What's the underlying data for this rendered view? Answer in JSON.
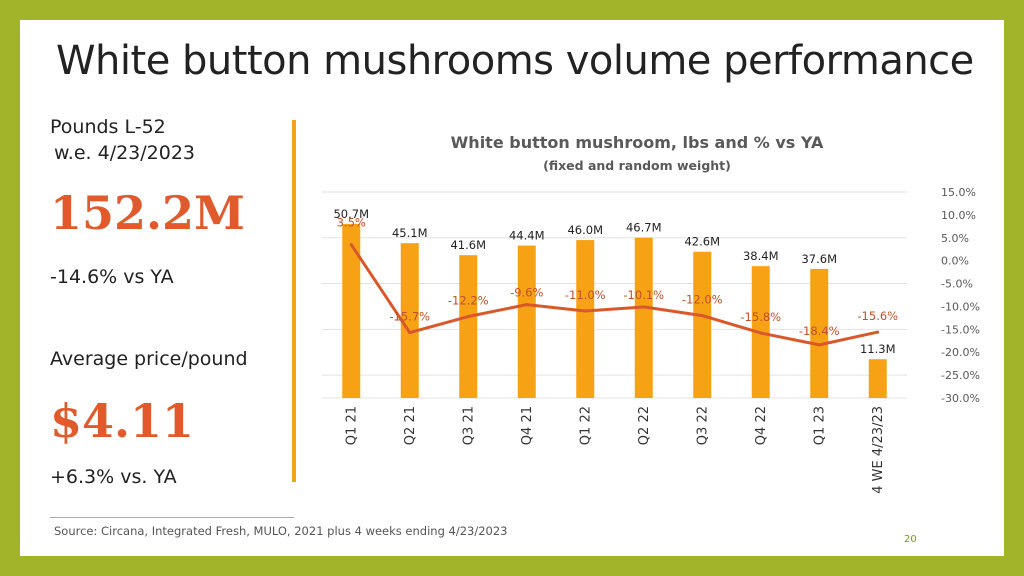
{
  "slide": {
    "title": "White button mushrooms volume performance",
    "left_panel": {
      "line1": "Pounds L-52",
      "line2": "w.e. 4/23/2023",
      "volume": "152.2M",
      "volume_change": "-14.6% vs YA",
      "price_label": "Average price/pound",
      "price": "$4.11",
      "price_change": "+6.3% vs. YA"
    },
    "source": "Source: Circana, Integrated Fresh, MULO, 2021 plus 4 weeks ending 4/23/2023",
    "page_number": "20"
  },
  "colors": {
    "frame": "#a2b52a",
    "bar": "#f7a215",
    "line": "#d9582a",
    "accent": "#e05a2b"
  },
  "chart_data": {
    "type": "bar",
    "title": "White button mushroom, lbs and % vs YA",
    "subtitle": "(fixed and random weight)",
    "categories": [
      "Q1 21",
      "Q2 21",
      "Q3 21",
      "Q4 21",
      "Q1 22",
      "Q2 22",
      "Q3 22",
      "Q4 22",
      "Q1 23",
      "4 WE 4/23/23"
    ],
    "series": [
      {
        "name": "lbs (M)",
        "type": "bar",
        "values": [
          50.7,
          45.1,
          41.6,
          44.4,
          46.0,
          46.7,
          42.6,
          38.4,
          37.6,
          11.3
        ],
        "labels": [
          "50.7M",
          "45.1M",
          "41.6M",
          "44.4M",
          "46.0M",
          "46.7M",
          "42.6M",
          "38.4M",
          "37.6M",
          "11.3M"
        ]
      },
      {
        "name": "% vs YA",
        "type": "line",
        "axis": "right",
        "values": [
          3.5,
          -15.7,
          -12.2,
          -9.6,
          -11.0,
          -10.1,
          -12.0,
          -15.8,
          -18.4,
          -15.6
        ],
        "labels": [
          "3.5%",
          "-15.7%",
          "-12.2%",
          "-9.6%",
          "-11.0%",
          "-10.1%",
          "-12.0%",
          "-15.8%",
          "-18.4%",
          "-15.6%"
        ]
      }
    ],
    "y2_ticks": [
      "15.0%",
      "10.0%",
      "5.0%",
      "0.0%",
      "-5.0%",
      "-10.0%",
      "-15.0%",
      "-20.0%",
      "-25.0%",
      "-30.0%"
    ],
    "y2lim": [
      -30,
      15
    ],
    "ylim": [
      0,
      60
    ],
    "grid": true,
    "legend": "none"
  }
}
